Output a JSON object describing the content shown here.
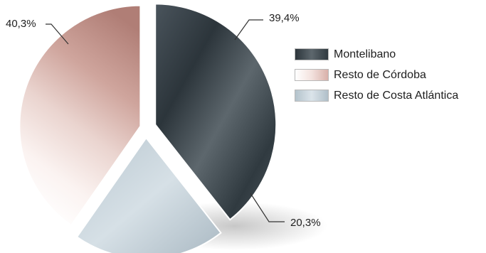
{
  "colors": {
    "montelibano": "#3e4a52",
    "resto_cordoba": "#c79a92",
    "resto_costa": "#c8d4dc"
  },
  "chart_data": {
    "type": "pie",
    "title": "",
    "slices": [
      {
        "name": "Montelibano",
        "value": 39.4,
        "label": "39,4%"
      },
      {
        "name": "Resto de Costa Atlántica",
        "value": 20.3,
        "label": "20,3%"
      },
      {
        "name": "Resto de Córdoba",
        "value": 40.3,
        "label": "40,3%"
      }
    ],
    "legend": {
      "placement": "right",
      "items": [
        "Montelibano",
        "Resto de Córdoba",
        "Resto de Costa Atlántica"
      ]
    }
  }
}
